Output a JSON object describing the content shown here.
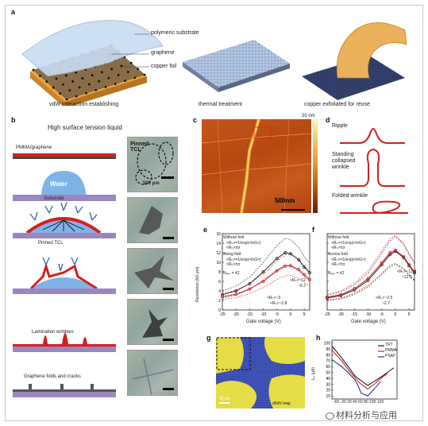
{
  "panel_a": {
    "label": "a",
    "polymeric_substrate": "polymeric substrate",
    "graphene": "graphene",
    "copper_foil": "copper foil",
    "caption_1": "vdW interaction establishing",
    "caption_2": "thermal treatment",
    "caption_3": "copper exfoliated for reuse"
  },
  "panel_b": {
    "label": "b",
    "title": "High surface tension liquid",
    "pmma_graphene": "PMMA/graphene",
    "water": "Water",
    "substrate": "Substrate",
    "pinned_tcl_stage": "Pinned TCL",
    "lamination_wrinkles": "Lamination wrinkles",
    "folds_cracks": "Graphene folds and cracks",
    "pinned_tcl_photo": "Pinned TCL",
    "scale": "500 μm"
  },
  "panel_c": {
    "label": "c",
    "height_label": "20 nm",
    "scale": "500nm"
  },
  "panel_d": {
    "label": "d",
    "ripple": "Ripple",
    "standing": "Standing collapsed wrinkle",
    "folded": "Folded wrinkle"
  },
  "panel_e": {
    "label": "e",
    "ylabel": "Resistance (kΩ·μm)",
    "xlabel": "Gate voltage (V)",
    "legend_without": "Without fold",
    "legend_along": "Along fold",
    "r_formula": "<Rₕ>=1/exp(<lnG>)",
    "r_band": "<Rₕ>±σ",
    "n_obs": "Nₒₑₛ = 42",
    "ann_a": "<Rₕ>~12",
    "ann_b": "~9.3",
    "ann_c": "<Rₕ>~3",
    "ann_d": "<Rₕ>~2.8",
    "y_ticks": [
      "0",
      "2",
      "4",
      "6",
      "8",
      "10",
      "12",
      "14",
      "16"
    ],
    "x_ticks": [
      "-25",
      "-20",
      "-15",
      "-10",
      "-5",
      "0",
      "5"
    ]
  },
  "panel_f": {
    "label": "f",
    "xlabel": "Gate voltage (V)",
    "legend_without": "Without fold",
    "legend_across": "Across fold",
    "r_formula": "<Rₕ>=1/exp(<lnG>)",
    "r_band": "<Rₕ>±σ",
    "n_obs": "Nₒₑₛ = 42",
    "ann_a": "<Rₕ>~12.3",
    "ann_b": "~12.5",
    "ann_c": "<Rₕ>~2.5",
    "ann_d": "~2.7",
    "y_ticks": [
      "0",
      "2",
      "4",
      "6",
      "8",
      "10",
      "12",
      "14",
      "16"
    ],
    "x_ticks": [
      "-25",
      "-20",
      "-15",
      "-10",
      "-5",
      "0",
      "5"
    ]
  },
  "panel_g": {
    "label": "g",
    "map_label": "dI/dV map",
    "scale": "10 nm"
  },
  "panel_h": {
    "label": "h",
    "ylabel": "Iₑₛ (μA)",
    "legend": [
      "TRT",
      "PMMA",
      "PSAF"
    ],
    "y_ticks": [
      "10",
      "20",
      "30",
      "40",
      "50",
      "60",
      "70",
      "80",
      "90",
      "100"
    ],
    "x_ticks": [
      "-60",
      "-20",
      "0",
      "20",
      "40",
      "60",
      "80",
      "100",
      "120"
    ],
    "x_tick_text": "-60 -20 20 40 60 80 100 120"
  },
  "colors": {
    "red": "#d81e1e",
    "purple": "#9a86c2",
    "blue_water": "#7fb3e6",
    "copper": "#e9a43c",
    "map_blue": "#3346a8",
    "map_yellow": "#e6dc45"
  },
  "watermark": "材料分析与应用",
  "chart_data": [
    {
      "type": "line",
      "panel": "e",
      "xlabel": "Gate voltage (V)",
      "ylabel": "Resistance (kΩ·μm)",
      "xlim": [
        -25,
        7
      ],
      "ylim": [
        0,
        16
      ],
      "series": [
        {
          "name": "Without fold",
          "x": [
            -25,
            -20,
            -15,
            -10,
            -5,
            -2,
            0,
            3,
            5,
            7
          ],
          "y": [
            3.2,
            4.0,
            5.5,
            8.0,
            10.8,
            12.0,
            11.8,
            10.5,
            9.0,
            7.8
          ]
        },
        {
          "name": "Along fold",
          "x": [
            -25,
            -20,
            -15,
            -10,
            -5,
            -2,
            0,
            3,
            5,
            7
          ],
          "y": [
            2.8,
            3.3,
            4.4,
            6.0,
            8.2,
            9.2,
            9.3,
            8.5,
            7.4,
            6.4
          ]
        }
      ]
    },
    {
      "type": "line",
      "panel": "f",
      "xlabel": "Gate voltage (V)",
      "xlim": [
        -25,
        7
      ],
      "ylim": [
        0,
        16
      ],
      "series": [
        {
          "name": "Without fold",
          "x": [
            -25,
            -20,
            -15,
            -10,
            -5,
            -2,
            0,
            3,
            5,
            7
          ],
          "y": [
            2.5,
            3.0,
            4.2,
            6.2,
            9.5,
            11.6,
            12.3,
            11.0,
            9.3,
            7.8
          ]
        },
        {
          "name": "Across fold",
          "x": [
            -25,
            -20,
            -15,
            -10,
            -5,
            -2,
            0,
            3,
            5,
            7
          ],
          "y": [
            2.7,
            3.2,
            4.5,
            6.6,
            9.9,
            12.0,
            12.5,
            11.2,
            9.5,
            8.0
          ]
        }
      ]
    },
    {
      "type": "line",
      "panel": "h",
      "ylabel": "Iₑₛ (μA)",
      "xlim": [
        -70,
        130
      ],
      "ylim": [
        5,
        105
      ],
      "series": [
        {
          "name": "TRT",
          "x": [
            -70,
            -40,
            -20,
            0,
            10,
            20,
            40,
            60,
            80,
            100,
            120
          ],
          "y": [
            95,
            75,
            60,
            45,
            40,
            36,
            28,
            35,
            42,
            50,
            58
          ]
        },
        {
          "name": "PMMA",
          "x": [
            -70,
            -40,
            -20,
            0,
            10,
            20,
            40,
            60,
            80,
            100
          ],
          "y": [
            88,
            70,
            55,
            42,
            35,
            30,
            22,
            30,
            40,
            48
          ]
        },
        {
          "name": "PSAF",
          "x": [
            -70,
            -40,
            -20,
            0,
            10,
            20,
            40,
            60,
            80
          ],
          "y": [
            72,
            60,
            50,
            38,
            28,
            15,
            10,
            22,
            35
          ]
        }
      ]
    }
  ]
}
